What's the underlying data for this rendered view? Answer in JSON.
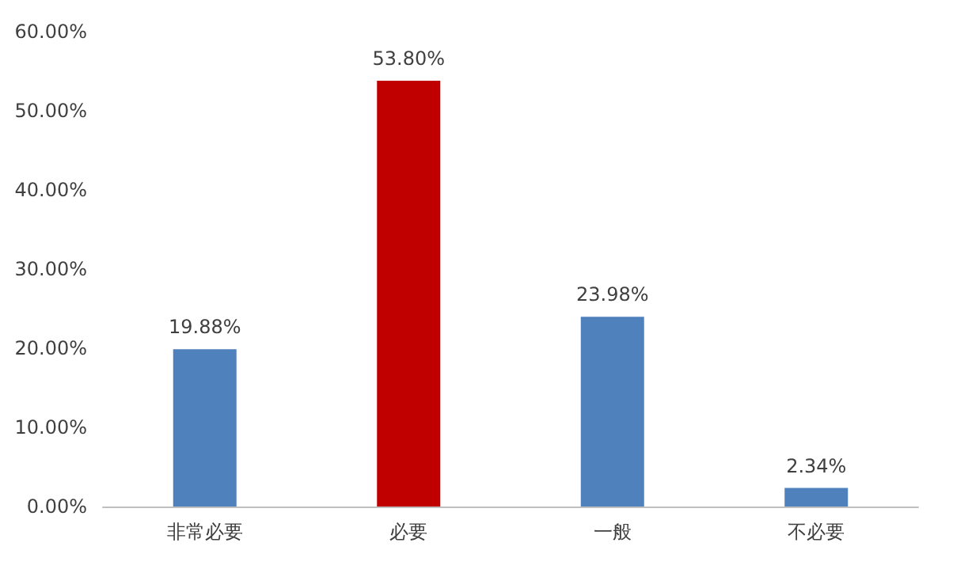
{
  "chart_data": {
    "type": "bar",
    "categories": [
      "非常必要",
      "必要",
      "一般",
      "不必要"
    ],
    "values": [
      19.88,
      53.8,
      23.98,
      2.34
    ],
    "colors": [
      "#4f81bd",
      "#c00000",
      "#4f81bd",
      "#4f81bd"
    ],
    "value_labels": [
      "19.88%",
      "53.80%",
      "23.98%",
      "2.34%"
    ],
    "ylim": [
      0,
      60
    ],
    "yticks": [
      {
        "value": 0,
        "label": "0.00%"
      },
      {
        "value": 10,
        "label": "10.00%"
      },
      {
        "value": 20,
        "label": "20.00%"
      },
      {
        "value": 30,
        "label": "30.00%"
      },
      {
        "value": 40,
        "label": "40.00%"
      },
      {
        "value": 50,
        "label": "50.00%"
      },
      {
        "value": 60,
        "label": "60.00%"
      }
    ],
    "grid": false
  }
}
